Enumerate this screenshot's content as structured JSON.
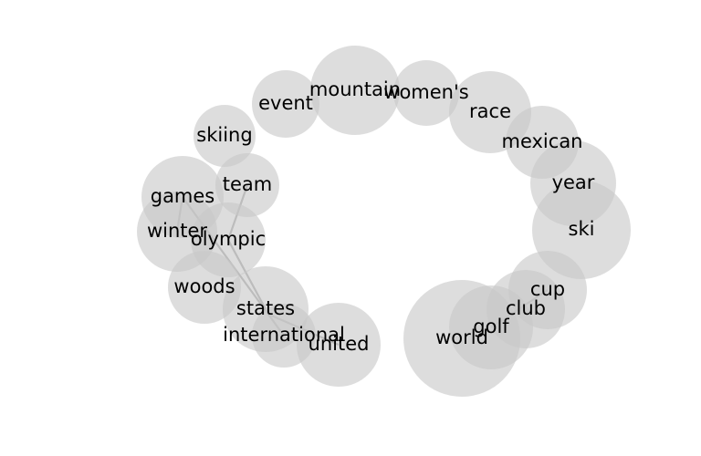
{
  "diagram": {
    "nodes": [
      {
        "id": "mountain",
        "label": "mountain"
      },
      {
        "id": "womens",
        "label": "women's"
      },
      {
        "id": "event",
        "label": "event"
      },
      {
        "id": "race",
        "label": "race"
      },
      {
        "id": "skiing",
        "label": "skiing"
      },
      {
        "id": "mexican",
        "label": "mexican"
      },
      {
        "id": "team",
        "label": "team"
      },
      {
        "id": "games",
        "label": "games"
      },
      {
        "id": "year",
        "label": "year"
      },
      {
        "id": "winter",
        "label": "winter"
      },
      {
        "id": "ski",
        "label": "ski"
      },
      {
        "id": "olympic",
        "label": "olympic"
      },
      {
        "id": "woods",
        "label": "woods"
      },
      {
        "id": "cup",
        "label": "cup"
      },
      {
        "id": "states",
        "label": "states"
      },
      {
        "id": "club",
        "label": "club"
      },
      {
        "id": "golf",
        "label": "golf"
      },
      {
        "id": "international",
        "label": "international"
      },
      {
        "id": "world",
        "label": "world"
      },
      {
        "id": "united",
        "label": "united"
      }
    ],
    "edges": [
      {
        "source": "games",
        "target": "winter"
      },
      {
        "source": "games",
        "target": "international"
      },
      {
        "source": "team",
        "target": "olympic"
      },
      {
        "source": "olympic",
        "target": "states"
      },
      {
        "source": "international",
        "target": "united"
      },
      {
        "source": "golf",
        "target": "cup"
      }
    ]
  }
}
